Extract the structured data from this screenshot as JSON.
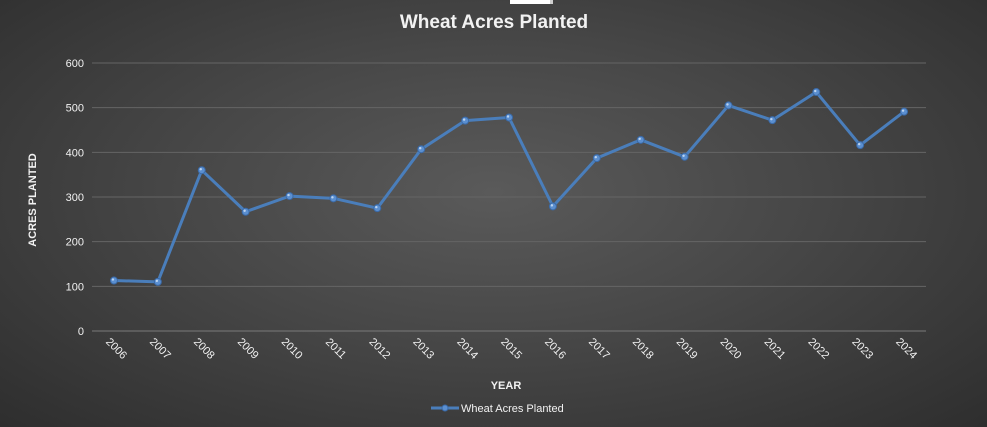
{
  "chart_data": {
    "type": "line",
    "title": "Wheat Acres Planted",
    "xlabel": "YEAR",
    "ylabel": "ACRES PLANTED",
    "categories": [
      "2006",
      "2007",
      "2008",
      "2009",
      "2010",
      "2011",
      "2012",
      "2013",
      "2014",
      "2015",
      "2016",
      "2017",
      "2018",
      "2019",
      "2020",
      "2021",
      "2022",
      "2023",
      "2024"
    ],
    "series": [
      {
        "name": "Wheat Acres Planted",
        "values": [
          113,
          110,
          360,
          267,
          302,
          297,
          275,
          407,
          471,
          478,
          279,
          387,
          428,
          390,
          505,
          472,
          535,
          416,
          491
        ],
        "color": "#4a7ebb"
      }
    ],
    "yticks": [
      "0",
      "100",
      "200",
      "300",
      "400",
      "500",
      "600"
    ],
    "ylim": [
      0,
      600
    ],
    "grid": true,
    "legend": "bottom"
  }
}
